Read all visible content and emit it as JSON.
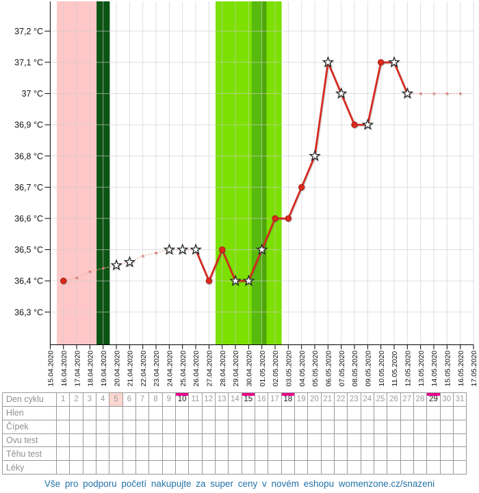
{
  "chart_data": {
    "type": "line",
    "title": "",
    "xlabel": "",
    "ylabel": "",
    "unit": "°C",
    "ylim": [
      36.2,
      37.3
    ],
    "grid": true,
    "y_ticks": [
      {
        "value": 37.2,
        "label": "37,2 °C"
      },
      {
        "value": 37.1,
        "label": "37,1 °C"
      },
      {
        "value": 37.0,
        "label": "37 °C"
      },
      {
        "value": 36.9,
        "label": "36,9 °C"
      },
      {
        "value": 36.8,
        "label": "36,8 °C"
      },
      {
        "value": 36.7,
        "label": "36,7 °C"
      },
      {
        "value": 36.6,
        "label": "36,6 °C"
      },
      {
        "value": 36.5,
        "label": "36,5 °C"
      },
      {
        "value": 36.4,
        "label": "36,4 °C"
      },
      {
        "value": 36.3,
        "label": "36,3 °C"
      }
    ],
    "x_dates": [
      "15.04.2020",
      "16.04.2020",
      "17.04.2020",
      "18.04.2020",
      "19.04.2020",
      "20.04.2020",
      "21.04.2020",
      "22.04.2020",
      "23.04.2020",
      "24.04.2020",
      "25.04.2020",
      "26.04.2020",
      "27.04.2020",
      "28.04.2020",
      "29.04.2020",
      "30.04.2020",
      "01.05.2020",
      "02.05.2020",
      "03.05.2020",
      "04.05.2020",
      "05.05.2020",
      "06.05.2020",
      "07.05.2020",
      "08.05.2020",
      "09.05.2020",
      "10.05.2020",
      "11.05.2020",
      "12.05.2020",
      "13.05.2020",
      "14.05.2020",
      "15.05.2020",
      "16.05.2020",
      "17.05.2020"
    ],
    "points": [
      {
        "date": "16.04.2020",
        "cycle_day": 1,
        "temp": 36.4,
        "marker": "circle",
        "estimated": false,
        "link": "dotted"
      },
      {
        "date": "17.04.2020",
        "cycle_day": 2,
        "temp": 36.41,
        "marker": "tiny",
        "estimated": true,
        "link": "dotted"
      },
      {
        "date": "18.04.2020",
        "cycle_day": 3,
        "temp": 36.43,
        "marker": "tiny",
        "estimated": true,
        "link": "dotted"
      },
      {
        "date": "19.04.2020",
        "cycle_day": 4,
        "temp": 36.44,
        "marker": "tiny",
        "estimated": true,
        "link": "dotted"
      },
      {
        "date": "20.04.2020",
        "cycle_day": 5,
        "temp": 36.45,
        "marker": "star",
        "estimated": true,
        "link": "dotted"
      },
      {
        "date": "21.04.2020",
        "cycle_day": 6,
        "temp": 36.46,
        "marker": "star",
        "estimated": true,
        "link": "dotted"
      },
      {
        "date": "22.04.2020",
        "cycle_day": 7,
        "temp": 36.48,
        "marker": "tiny",
        "estimated": true,
        "link": "dotted"
      },
      {
        "date": "23.04.2020",
        "cycle_day": 8,
        "temp": 36.49,
        "marker": "tiny",
        "estimated": true,
        "link": "dotted"
      },
      {
        "date": "24.04.2020",
        "cycle_day": 9,
        "temp": 36.5,
        "marker": "star",
        "estimated": false,
        "link": "dotted"
      },
      {
        "date": "25.04.2020",
        "cycle_day": 10,
        "temp": 36.5,
        "marker": "star",
        "estimated": false,
        "link": "dotted"
      },
      {
        "date": "26.04.2020",
        "cycle_day": 11,
        "temp": 36.5,
        "marker": "star",
        "estimated": false,
        "link": "solid"
      },
      {
        "date": "27.04.2020",
        "cycle_day": 12,
        "temp": 36.4,
        "marker": "circle",
        "estimated": false,
        "link": "solid"
      },
      {
        "date": "28.04.2020",
        "cycle_day": 13,
        "temp": 36.5,
        "marker": "circle",
        "estimated": false,
        "link": "solid"
      },
      {
        "date": "29.04.2020",
        "cycle_day": 14,
        "temp": 36.4,
        "marker": "star",
        "estimated": false,
        "link": "solid"
      },
      {
        "date": "30.04.2020",
        "cycle_day": 15,
        "temp": 36.4,
        "marker": "star",
        "estimated": false,
        "link": "solid"
      },
      {
        "date": "01.05.2020",
        "cycle_day": 16,
        "temp": 36.5,
        "marker": "star",
        "estimated": false,
        "link": "solid"
      },
      {
        "date": "02.05.2020",
        "cycle_day": 17,
        "temp": 36.6,
        "marker": "circle",
        "estimated": false,
        "link": "solid"
      },
      {
        "date": "03.05.2020",
        "cycle_day": 18,
        "temp": 36.6,
        "marker": "circle",
        "estimated": false,
        "link": "solid"
      },
      {
        "date": "04.05.2020",
        "cycle_day": 19,
        "temp": 36.7,
        "marker": "circle",
        "estimated": false,
        "link": "solid"
      },
      {
        "date": "05.05.2020",
        "cycle_day": 20,
        "temp": 36.8,
        "marker": "star",
        "estimated": false,
        "link": "solid"
      },
      {
        "date": "06.05.2020",
        "cycle_day": 21,
        "temp": 37.1,
        "marker": "star",
        "estimated": false,
        "link": "solid"
      },
      {
        "date": "07.05.2020",
        "cycle_day": 22,
        "temp": 37.0,
        "marker": "star",
        "estimated": false,
        "link": "solid"
      },
      {
        "date": "08.05.2020",
        "cycle_day": 23,
        "temp": 36.9,
        "marker": "circle",
        "estimated": false,
        "link": "solid"
      },
      {
        "date": "09.05.2020",
        "cycle_day": 24,
        "temp": 36.9,
        "marker": "star",
        "estimated": false,
        "link": "solid"
      },
      {
        "date": "10.05.2020",
        "cycle_day": 25,
        "temp": 37.1,
        "marker": "circle",
        "estimated": false,
        "link": "solid"
      },
      {
        "date": "11.05.2020",
        "cycle_day": 26,
        "temp": 37.1,
        "marker": "star",
        "estimated": false,
        "link": "solid"
      },
      {
        "date": "12.05.2020",
        "cycle_day": 27,
        "temp": 37.0,
        "marker": "star",
        "estimated": false,
        "link": "dotted"
      },
      {
        "date": "13.05.2020",
        "cycle_day": 28,
        "temp": 37.0,
        "marker": "tiny",
        "estimated": true,
        "link": "dotted"
      },
      {
        "date": "14.05.2020",
        "cycle_day": 29,
        "temp": 37.0,
        "marker": "tiny",
        "estimated": true,
        "link": "dotted"
      },
      {
        "date": "15.05.2020",
        "cycle_day": 30,
        "temp": 37.0,
        "marker": "tiny",
        "estimated": true,
        "link": "dotted"
      },
      {
        "date": "16.05.2020",
        "cycle_day": 31,
        "temp": 37.0,
        "marker": "tiny",
        "estimated": true,
        "link": "none"
      }
    ],
    "bands": [
      {
        "name": "menstruation",
        "color": "#ffc7c7",
        "from_day": 0.5,
        "to_day": 3.5,
        "dates": "16.04.2020-18.04.2020"
      },
      {
        "name": "calendar-fertile-day",
        "color": "#0b5413",
        "from_day": 3.5,
        "to_day": 4.5,
        "dates": "19.04.2020"
      },
      {
        "name": "fertile-window",
        "color": "#7ce000",
        "from_day": 12.5,
        "to_day": 17.5,
        "dates": "28.04.2020-02.05.2020"
      },
      {
        "name": "ovulation-stripe-a",
        "color": "#58b90e",
        "from_day": 15.23,
        "to_day": 16.0,
        "dates": "30.04.2020-01.05.2020"
      },
      {
        "name": "ovulation-stripe-b",
        "color": "#4da508",
        "from_day": 16.0,
        "to_day": 16.35,
        "dates": "01.05.2020"
      }
    ],
    "colors": {
      "line_solid": "#d7281e",
      "line_dotted": "#f0aca6",
      "point_fill": "#dd2a1e",
      "point_stroke": "#9e1810",
      "tiny_point": "#e28078",
      "star_fill": "#ffffff",
      "star_stroke": "#1a1a1a",
      "gridline": "#cccccc",
      "axis": "#000000"
    }
  },
  "table": {
    "row_labels": [
      "Den cyklu",
      "Hlen",
      "Čípek",
      "Ovu test",
      "Těhu test",
      "Léky"
    ],
    "day_numbers": [
      1,
      2,
      3,
      4,
      5,
      6,
      7,
      8,
      9,
      10,
      11,
      12,
      13,
      14,
      15,
      16,
      17,
      18,
      19,
      20,
      21,
      22,
      23,
      24,
      25,
      26,
      27,
      28,
      29,
      30,
      31
    ],
    "pink_days": [
      5
    ],
    "marked_days": [
      10,
      15,
      18,
      29
    ],
    "marker_color": "#ec008c",
    "pink_cell_color": "#fbd5cf"
  },
  "footer": {
    "link_text": "Vše pro podporu početí nakupujte za super ceny v novém eshopu womenzone.cz/snazeni"
  }
}
